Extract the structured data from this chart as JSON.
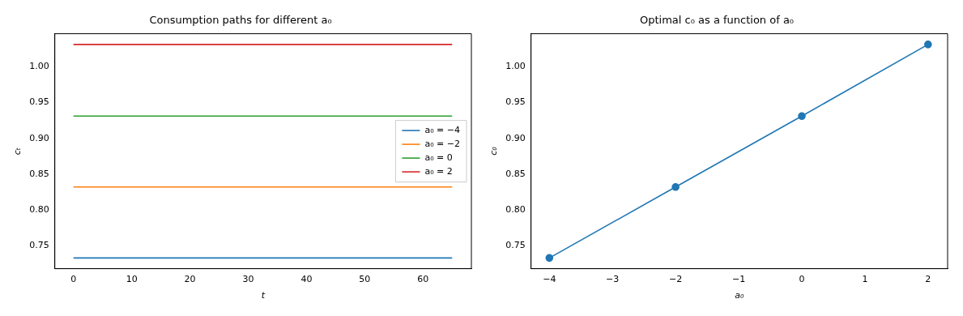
{
  "chart_data": [
    {
      "type": "line",
      "title": "Consumption paths for different a₀",
      "xlabel": "t",
      "ylabel": "cₜ",
      "series": [
        {
          "name": "a₀ = −4",
          "color": "#1f77b4",
          "x": [
            0,
            65
          ],
          "values": [
            0.733,
            0.733
          ]
        },
        {
          "name": "a₀ = −2",
          "color": "#ff7f0e",
          "x": [
            0,
            65
          ],
          "values": [
            0.832,
            0.832
          ]
        },
        {
          "name": "a₀ = 0",
          "color": "#2ca02c",
          "x": [
            0,
            65
          ],
          "values": [
            0.931,
            0.931
          ]
        },
        {
          "name": "a₀ = 2",
          "color": "#d62728",
          "x": [
            0,
            65
          ],
          "values": [
            1.031,
            1.031
          ]
        }
      ],
      "xlim": [
        -3.2,
        68.3
      ],
      "xticks": [
        0,
        10,
        20,
        30,
        40,
        50,
        60
      ],
      "ylim": [
        0.718,
        1.046
      ],
      "yticks": [
        0.75,
        {
          "value": 0.8,
          "label": "0.80"
        },
        0.85,
        {
          "value": 0.9,
          "label": "0.90"
        },
        0.95,
        {
          "value": 1,
          "label": "1.00"
        }
      ],
      "legend": "center right"
    },
    {
      "type": "line",
      "title": "Optimal c₀ as a function of a₀",
      "xlabel": "a₀",
      "ylabel": "c₀",
      "series": [
        {
          "color": "#1f77b4",
          "x": [
            -4,
            -2,
            0,
            2
          ],
          "values": [
            0.733,
            0.832,
            0.931,
            1.031
          ]
        }
      ],
      "marker": "circle",
      "xlim": [
        -4.29,
        2.31
      ],
      "xticks": [
        {
          "value": -4,
          "label": "−4"
        },
        {
          "value": -3,
          "label": "−3"
        },
        {
          "value": -2,
          "label": "−2"
        },
        {
          "value": -1,
          "label": "−1"
        },
        0,
        1,
        2
      ],
      "ylim": [
        0.718,
        1.046
      ],
      "yticks": [
        0.75,
        {
          "value": 0.8,
          "label": "0.80"
        },
        0.85,
        {
          "value": 0.9,
          "label": "0.90"
        },
        0.95,
        {
          "value": 1,
          "label": "1.00"
        }
      ]
    }
  ]
}
